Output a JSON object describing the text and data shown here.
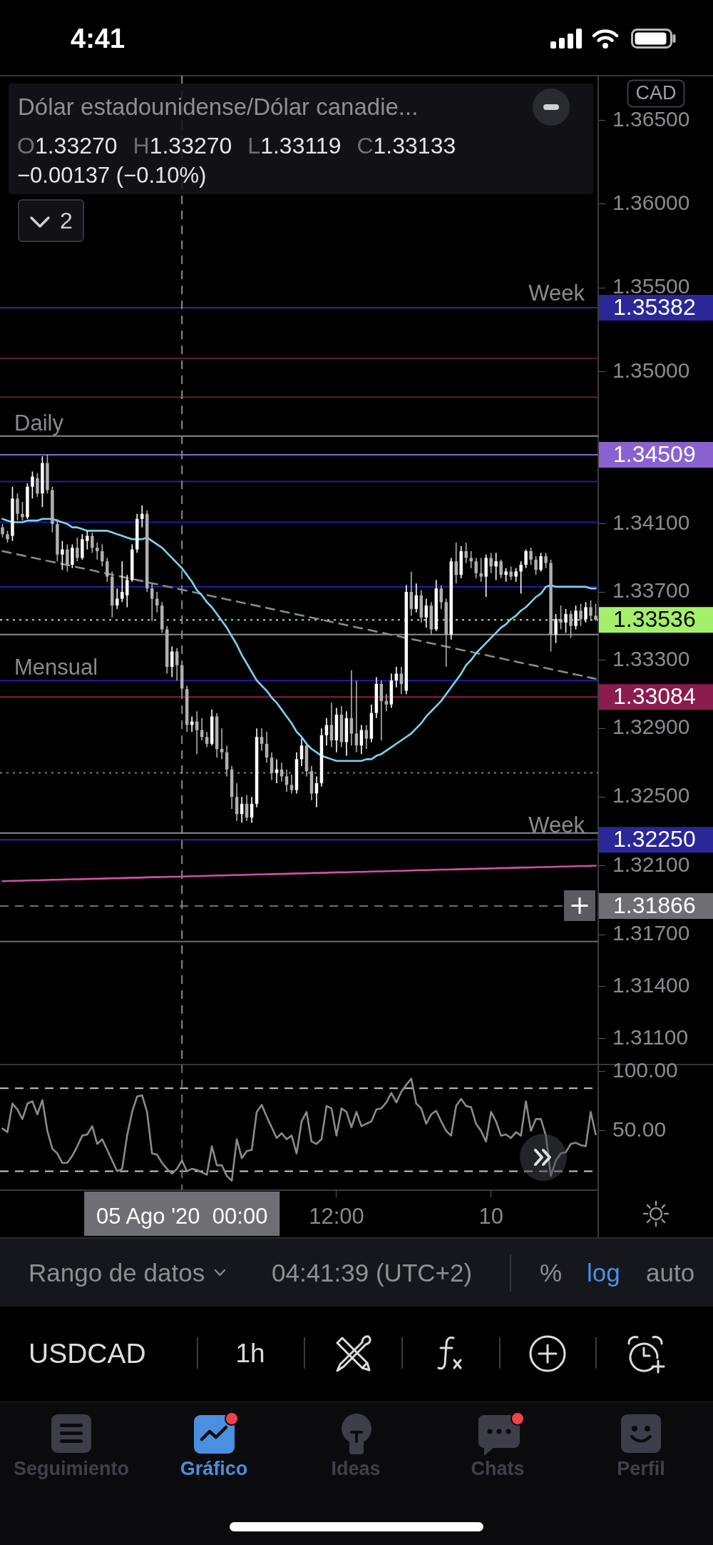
{
  "chart_data": [
    {
      "type": "candlestick",
      "title": "Dólar estadounidense/Dólar canadie...",
      "subtitle": "O1.33270 H1.33270 L1.33119 C1.33133",
      "log": true,
      "tick_labels": "y",
      "ylim": [
        1.3095,
        1.3677
      ],
      "yticks": [
        {
          "value": 1.365,
          "label": "1.36500"
        },
        {
          "value": 1.36,
          "label": "1.36000"
        },
        {
          "value": 1.355,
          "label": "1.35500"
        },
        {
          "value": 1.35,
          "label": "1.35000"
        },
        {
          "value": 1.341,
          "label": "1.34100"
        },
        {
          "value": 1.337,
          "label": "1.33700"
        },
        {
          "value": 1.333,
          "label": "1.33300"
        },
        {
          "value": 1.329,
          "label": "1.32900"
        },
        {
          "value": 1.325,
          "label": "1.32500"
        },
        {
          "value": 1.321,
          "label": "1.32100"
        },
        {
          "value": 1.317,
          "label": "1.31700"
        },
        {
          "value": 1.314,
          "label": "1.31400"
        },
        {
          "value": 1.311,
          "label": "1.31100"
        }
      ],
      "categories": [
        null,
        null,
        null,
        null,
        null,
        null,
        null,
        null,
        null,
        null,
        null,
        null,
        null,
        null,
        null,
        null,
        null,
        null,
        null,
        null,
        null,
        null,
        null,
        null,
        null,
        null,
        null,
        null,
        null,
        null,
        null,
        null,
        null,
        null,
        null,
        null,
        "05 Ago '20  00:00",
        null,
        null,
        null,
        null,
        null,
        null,
        null,
        null,
        null,
        null,
        null,
        null,
        null,
        null,
        null,
        null,
        null,
        null,
        null,
        null,
        null,
        null,
        null,
        null,
        null,
        null,
        null,
        null,
        null,
        null,
        "12:00",
        null,
        null,
        null,
        null,
        null,
        null,
        null,
        null,
        null,
        null,
        null,
        null,
        null,
        null,
        null,
        null,
        null,
        null,
        null,
        null,
        null,
        null,
        null,
        null,
        null,
        null,
        null,
        null,
        null,
        null,
        "10",
        null,
        null,
        null,
        null,
        null,
        null,
        null,
        null,
        null,
        null,
        null,
        null,
        null,
        null,
        null,
        null,
        null,
        null,
        null,
        null,
        null
      ],
      "ohlc": [
        [
          1.3408,
          1.341,
          1.3402,
          1.3404
        ],
        [
          1.3404,
          1.3406,
          1.3399,
          1.3401
        ],
        [
          1.3403,
          1.3432,
          1.34,
          1.3425
        ],
        [
          1.3425,
          1.3428,
          1.3412,
          1.3416
        ],
        [
          1.3416,
          1.3423,
          1.3412,
          1.3414
        ],
        [
          1.3414,
          1.3434,
          1.3413,
          1.3432
        ],
        [
          1.3432,
          1.3441,
          1.3425,
          1.3438
        ],
        [
          1.3437,
          1.344,
          1.3426,
          1.3428
        ],
        [
          1.3428,
          1.345,
          1.342,
          1.3446
        ],
        [
          1.3446,
          1.3451,
          1.3428,
          1.343
        ],
        [
          1.343,
          1.3432,
          1.3405,
          1.341
        ],
        [
          1.341,
          1.3413,
          1.3388,
          1.3392
        ],
        [
          1.3392,
          1.34,
          1.3383,
          1.3395
        ],
        [
          1.3395,
          1.3398,
          1.3382,
          1.3386
        ],
        [
          1.3386,
          1.3398,
          1.3384,
          1.3396
        ],
        [
          1.3396,
          1.3402,
          1.3388,
          1.339
        ],
        [
          1.339,
          1.3404,
          1.3389,
          1.3401
        ],
        [
          1.34,
          1.3406,
          1.3395,
          1.3403
        ],
        [
          1.3403,
          1.3405,
          1.3393,
          1.3396
        ],
        [
          1.3396,
          1.3399,
          1.3389,
          1.3394
        ],
        [
          1.3394,
          1.3398,
          1.3385,
          1.3388
        ],
        [
          1.3388,
          1.339,
          1.3376,
          1.3379
        ],
        [
          1.3379,
          1.3382,
          1.3355,
          1.3362
        ],
        [
          1.3362,
          1.3372,
          1.336,
          1.3366
        ],
        [
          1.3366,
          1.3388,
          1.3364,
          1.337
        ],
        [
          1.3368,
          1.338,
          1.3361,
          1.3377
        ],
        [
          1.3377,
          1.3398,
          1.3376,
          1.3395
        ],
        [
          1.3395,
          1.3416,
          1.3393,
          1.3413
        ],
        [
          1.3413,
          1.3421,
          1.3408,
          1.3416
        ],
        [
          1.3416,
          1.3418,
          1.337,
          1.3372
        ],
        [
          1.3372,
          1.3375,
          1.3353,
          1.3366
        ],
        [
          1.3366,
          1.337,
          1.3358,
          1.3362
        ],
        [
          1.3362,
          1.3364,
          1.3346,
          1.3348
        ],
        [
          1.3348,
          1.335,
          1.3322,
          1.3326
        ],
        [
          1.3326,
          1.3338,
          1.332,
          1.3335
        ],
        [
          1.3335,
          1.3337,
          1.3318,
          1.3327
        ],
        [
          1.3327,
          1.3327,
          1.33119,
          1.33133
        ],
        [
          1.3313,
          1.3315,
          1.3288,
          1.3292
        ],
        [
          1.3292,
          1.3297,
          1.3288,
          1.3294
        ],
        [
          1.3294,
          1.33,
          1.3275,
          1.3289
        ],
        [
          1.3289,
          1.3296,
          1.3283,
          1.3285
        ],
        [
          1.3285,
          1.3288,
          1.3279,
          1.3281
        ],
        [
          1.3281,
          1.3301,
          1.328,
          1.3297
        ],
        [
          1.3297,
          1.3299,
          1.3273,
          1.3278
        ],
        [
          1.3278,
          1.329,
          1.3272,
          1.3276
        ],
        [
          1.3276,
          1.328,
          1.3262,
          1.3266
        ],
        [
          1.3266,
          1.3268,
          1.3243,
          1.325
        ],
        [
          1.325,
          1.3258,
          1.3236,
          1.324
        ],
        [
          1.324,
          1.325,
          1.3235,
          1.3246
        ],
        [
          1.3246,
          1.3251,
          1.3236,
          1.3238
        ],
        [
          1.3238,
          1.325,
          1.3235,
          1.3246
        ],
        [
          1.3246,
          1.329,
          1.3244,
          1.3285
        ],
        [
          1.3285,
          1.329,
          1.3277,
          1.3281
        ],
        [
          1.3281,
          1.3288,
          1.327,
          1.3273
        ],
        [
          1.3273,
          1.3276,
          1.326,
          1.3264
        ],
        [
          1.3264,
          1.3272,
          1.3258,
          1.3266
        ],
        [
          1.3266,
          1.327,
          1.3259,
          1.3262
        ],
        [
          1.3262,
          1.3266,
          1.3253,
          1.3257
        ],
        [
          1.3257,
          1.3263,
          1.3252,
          1.3254
        ],
        [
          1.3254,
          1.3276,
          1.3252,
          1.3272
        ],
        [
          1.3272,
          1.3284,
          1.3268,
          1.328
        ],
        [
          1.328,
          1.3282,
          1.3262,
          1.3265
        ],
        [
          1.3265,
          1.3268,
          1.3248,
          1.3252
        ],
        [
          1.3252,
          1.3262,
          1.3244,
          1.3258
        ],
        [
          1.3258,
          1.329,
          1.3256,
          1.3286
        ],
        [
          1.3286,
          1.3296,
          1.328,
          1.3292
        ],
        [
          1.3292,
          1.3305,
          1.3279,
          1.3283
        ],
        [
          1.3283,
          1.3302,
          1.3276,
          1.3298
        ],
        [
          1.3298,
          1.3303,
          1.3279,
          1.3282
        ],
        [
          1.3282,
          1.33,
          1.3274,
          1.3296
        ],
        [
          1.3296,
          1.3324,
          1.328,
          1.3287
        ],
        [
          1.3287,
          1.3318,
          1.3276,
          1.328
        ],
        [
          1.328,
          1.3292,
          1.3275,
          1.3289
        ],
        [
          1.3289,
          1.3292,
          1.3278,
          1.3284
        ],
        [
          1.3284,
          1.3304,
          1.3282,
          1.3299
        ],
        [
          1.3299,
          1.332,
          1.3296,
          1.3316
        ],
        [
          1.3316,
          1.3318,
          1.3283,
          1.3306
        ],
        [
          1.3306,
          1.331,
          1.33,
          1.3304
        ],
        [
          1.3304,
          1.3322,
          1.3302,
          1.3318
        ],
        [
          1.3318,
          1.3326,
          1.3314,
          1.3322
        ],
        [
          1.3322,
          1.3326,
          1.331,
          1.3316
        ],
        [
          1.3312,
          1.3374,
          1.331,
          1.337
        ],
        [
          1.337,
          1.3382,
          1.3356,
          1.336
        ],
        [
          1.336,
          1.3375,
          1.3358,
          1.3368
        ],
        [
          1.3368,
          1.3371,
          1.3352,
          1.3355
        ],
        [
          1.3355,
          1.3366,
          1.3349,
          1.3362
        ],
        [
          1.3362,
          1.3364,
          1.3345,
          1.3348
        ],
        [
          1.3348,
          1.3377,
          1.3347,
          1.3372
        ],
        [
          1.3372,
          1.3374,
          1.336,
          1.3364
        ],
        [
          1.3364,
          1.3366,
          1.3326,
          1.3345
        ],
        [
          1.3345,
          1.339,
          1.3342,
          1.3388
        ],
        [
          1.3388,
          1.3399,
          1.3375,
          1.338
        ],
        [
          1.338,
          1.3397,
          1.3378,
          1.3394
        ],
        [
          1.3394,
          1.3399,
          1.3387,
          1.339
        ],
        [
          1.339,
          1.3394,
          1.3384,
          1.3388
        ],
        [
          1.3388,
          1.339,
          1.3378,
          1.3381
        ],
        [
          1.3381,
          1.339,
          1.3376,
          1.3379
        ],
        [
          1.3379,
          1.3392,
          1.3367,
          1.339
        ],
        [
          1.339,
          1.3393,
          1.3381,
          1.3385
        ],
        [
          1.3385,
          1.3393,
          1.3377,
          1.3388
        ],
        [
          1.3388,
          1.3389,
          1.3378,
          1.338
        ],
        [
          1.338,
          1.3384,
          1.3376,
          1.3382
        ],
        [
          1.3382,
          1.3385,
          1.3377,
          1.3379
        ],
        [
          1.3379,
          1.3384,
          1.3376,
          1.3382
        ],
        [
          1.3382,
          1.3388,
          1.3369,
          1.3386
        ],
        [
          1.3386,
          1.3395,
          1.3384,
          1.3394
        ],
        [
          1.3394,
          1.3396,
          1.3386,
          1.3389
        ],
        [
          1.3389,
          1.3391,
          1.338,
          1.3383
        ],
        [
          1.3383,
          1.3393,
          1.3382,
          1.3391
        ],
        [
          1.3391,
          1.3393,
          1.3384,
          1.3387
        ],
        [
          1.3387,
          1.3389,
          1.3335,
          1.3345
        ],
        [
          1.3345,
          1.3357,
          1.334,
          1.3354
        ],
        [
          1.3354,
          1.3362,
          1.3348,
          1.3352
        ],
        [
          1.3352,
          1.336,
          1.3346,
          1.3357
        ],
        [
          1.3357,
          1.3359,
          1.3343,
          1.335
        ],
        [
          1.335,
          1.3362,
          1.3348,
          1.3359
        ],
        [
          1.3359,
          1.3363,
          1.335,
          1.3354
        ],
        [
          1.3354,
          1.3364,
          1.3352,
          1.3361
        ],
        [
          1.3361,
          1.3365,
          1.3353,
          1.3356
        ],
        [
          1.3356,
          1.3363,
          1.3353,
          1.33536
        ]
      ],
      "colors": [
        "#b0b0b0",
        "#b0b0b0",
        "#ffffff",
        "#b0b0b0",
        "#b0b0b0",
        "#ffffff",
        "#ffffff",
        "#b0b0b0",
        "#ffffff",
        "#b0b0b0",
        "#b0b0b0",
        "#b0b0b0",
        "#ffffff",
        "#b0b0b0",
        "#ffffff",
        "#b0b0b0",
        "#ffffff",
        "#ffffff",
        "#b0b0b0",
        "#b0b0b0",
        "#b0b0b0",
        "#b0b0b0",
        "#b0b0b0",
        "#ffffff",
        "#ffffff",
        "#ffffff",
        "#ffffff",
        "#ffffff",
        "#ffffff",
        "#b0b0b0",
        "#b0b0b0",
        "#b0b0b0",
        "#b0b0b0",
        "#b0b0b0",
        "#ffffff",
        "#b0b0b0",
        "#b0b0b0",
        "#b0b0b0",
        "#ffffff",
        "#b0b0b0",
        "#b0b0b0",
        "#b0b0b0",
        "#ffffff",
        "#b0b0b0",
        "#b0b0b0",
        "#b0b0b0",
        "#b0b0b0",
        "#b0b0b0",
        "#ffffff",
        "#b0b0b0",
        "#ffffff",
        "#ffffff",
        "#b0b0b0",
        "#b0b0b0",
        "#b0b0b0",
        "#ffffff",
        "#b0b0b0",
        "#b0b0b0",
        "#b0b0b0",
        "#ffffff",
        "#ffffff",
        "#b0b0b0",
        "#b0b0b0",
        "#ffffff",
        "#ffffff",
        "#ffffff",
        "#b0b0b0",
        "#ffffff",
        "#b0b0b0",
        "#ffffff",
        "#b0b0b0",
        "#b0b0b0",
        "#ffffff",
        "#b0b0b0",
        "#ffffff",
        "#ffffff",
        "#b0b0b0",
        "#b0b0b0",
        "#ffffff",
        "#ffffff",
        "#b0b0b0",
        "#ffffff",
        "#b0b0b0",
        "#ffffff",
        "#b0b0b0",
        "#ffffff",
        "#b0b0b0",
        "#ffffff",
        "#b0b0b0",
        "#b0b0b0",
        "#ffffff",
        "#b0b0b0",
        "#ffffff",
        "#b0b0b0",
        "#b0b0b0",
        "#b0b0b0",
        "#b0b0b0",
        "#ffffff",
        "#b0b0b0",
        "#ffffff",
        "#b0b0b0",
        "#ffffff",
        "#b0b0b0",
        "#ffffff",
        "#ffffff",
        "#ffffff",
        "#b0b0b0",
        "#b0b0b0",
        "#ffffff",
        "#b0b0b0",
        "#b0b0b0",
        "#ffffff",
        "#b0b0b0",
        "#ffffff",
        "#b0b0b0",
        "#ffffff",
        "#b0b0b0",
        "#ffffff",
        "#b0b0b0",
        "#b0b0b0"
      ],
      "series": [
        {
          "type": "line",
          "color": "#7fd2ee",
          "values": [
            1.3413,
            1.3412,
            1.3411,
            1.3411,
            1.3411,
            1.3412,
            1.3412,
            1.3412,
            1.3413,
            1.3413,
            1.3413,
            1.3412,
            1.3411,
            1.341,
            1.3408,
            1.3408,
            1.3407,
            1.3406,
            1.3406,
            1.3406,
            1.3406,
            1.3406,
            1.3405,
            1.3404,
            1.3403,
            1.3402,
            1.3401,
            1.3401,
            1.3401,
            1.3402,
            1.34,
            1.3398,
            1.3396,
            1.3393,
            1.339,
            1.3387,
            1.3384,
            1.338,
            1.3376,
            1.3371,
            1.3368,
            1.3364,
            1.3361,
            1.3357,
            1.3353,
            1.3349,
            1.3344,
            1.3339,
            1.3333,
            1.3328,
            1.3323,
            1.3318,
            1.3315,
            1.3312,
            1.3308,
            1.3305,
            1.3301,
            1.3297,
            1.3293,
            1.3288,
            1.3285,
            1.3281,
            1.3278,
            1.3276,
            1.3274,
            1.3273,
            1.3272,
            1.3271,
            1.3271,
            1.3271,
            1.3271,
            1.3271,
            1.3271,
            1.3272,
            1.3272,
            1.3274,
            1.3275,
            1.3277,
            1.3279,
            1.3281,
            1.3283,
            1.3285,
            1.3287,
            1.329,
            1.3293,
            1.3297,
            1.33,
            1.3303,
            1.3306,
            1.331,
            1.3314,
            1.3318,
            1.3322,
            1.3327,
            1.333,
            1.3334,
            1.3337,
            1.334,
            1.3343,
            1.3346,
            1.3349,
            1.3351,
            1.3354,
            1.3356,
            1.3359,
            1.3361,
            1.3364,
            1.3367,
            1.3369,
            1.3373,
            1.3374,
            1.3373,
            1.3373,
            1.3373,
            1.3373,
            1.3373,
            1.3373,
            1.3373,
            1.3372,
            1.3372
          ]
        },
        {
          "type": "line",
          "color": "#8a8a8a",
          "line_style": "dashed",
          "values": [
            1.3394,
            1.33934,
            1.33927,
            1.33921,
            1.33915,
            1.33908,
            1.33902,
            1.33896,
            1.3389,
            1.33883,
            1.33877,
            1.33871,
            1.33864,
            1.33858,
            1.33852,
            1.33845,
            1.33839,
            1.33833,
            1.33827,
            1.3382,
            1.33814,
            1.33808,
            1.33801,
            1.33795,
            1.33789,
            1.33782,
            1.33776,
            1.3377,
            1.33764,
            1.33757,
            1.33751,
            1.33745,
            1.33738,
            1.33732,
            1.33726,
            1.33719,
            1.33713,
            1.33707,
            1.337,
            1.33694,
            1.33688,
            1.33682,
            1.33675,
            1.33669,
            1.33663,
            1.33656,
            1.3365,
            1.33644,
            1.33637,
            1.33631,
            1.33625,
            1.33619,
            1.33612,
            1.33606,
            1.336,
            1.33593,
            1.33587,
            1.33581,
            1.33574,
            1.33568,
            1.33562,
            1.33556,
            1.33549,
            1.33543,
            1.33537,
            1.3353,
            1.33524,
            1.33518,
            1.33511,
            1.33505,
            1.33499,
            1.33492,
            1.33486,
            1.3348,
            1.33474,
            1.33467,
            1.33461,
            1.33455,
            1.33448,
            1.33442,
            1.33436,
            1.33429,
            1.33423,
            1.33417,
            1.33411,
            1.33404,
            1.33398,
            1.33392,
            1.33385,
            1.33379,
            1.33373,
            1.33366,
            1.3336,
            1.33354,
            1.33348,
            1.33341,
            1.33335,
            1.33329,
            1.33322,
            1.33316,
            1.3331,
            1.33303,
            1.33297,
            1.33291,
            1.33284,
            1.33278,
            1.33272,
            1.33266,
            1.33259,
            1.33253,
            1.33247,
            1.3324,
            1.33234,
            1.33228,
            1.33221,
            1.33215,
            1.33209,
            1.33203,
            1.33196,
            1.3319
          ]
        },
        {
          "type": "line",
          "color": "#d24fa6",
          "values": [
            1.3201,
            1.32011,
            1.32012,
            1.32012,
            1.32013,
            1.32014,
            1.32015,
            1.32015,
            1.32016,
            1.32017,
            1.32018,
            1.32018,
            1.32019,
            1.3202,
            1.32021,
            1.32021,
            1.32022,
            1.32023,
            1.32024,
            1.32024,
            1.32025,
            1.32026,
            1.32027,
            1.32027,
            1.32028,
            1.32029,
            1.3203,
            1.3203,
            1.32031,
            1.32032,
            1.32033,
            1.32033,
            1.32034,
            1.32035,
            1.32036,
            1.32036,
            1.32037,
            1.32038,
            1.32039,
            1.32039,
            1.3204,
            1.32041,
            1.32042,
            1.32043,
            1.32043,
            1.32044,
            1.32045,
            1.32046,
            1.32046,
            1.32047,
            1.32048,
            1.32049,
            1.32049,
            1.3205,
            1.32051,
            1.32052,
            1.32052,
            1.32053,
            1.32054,
            1.32055,
            1.32055,
            1.32056,
            1.32057,
            1.32058,
            1.32058,
            1.32059,
            1.3206,
            1.32061,
            1.32061,
            1.32062,
            1.32063,
            1.32064,
            1.32064,
            1.32065,
            1.32066,
            1.32067,
            1.32067,
            1.32068,
            1.32069,
            1.3207,
            1.3207,
            1.32071,
            1.32072,
            1.32073,
            1.32074,
            1.32074,
            1.32075,
            1.32076,
            1.32077,
            1.32077,
            1.32078,
            1.32079,
            1.3208,
            1.3208,
            1.32081,
            1.32082,
            1.32083,
            1.32083,
            1.32084,
            1.32085,
            1.32086,
            1.32086,
            1.32087,
            1.32088,
            1.32089,
            1.32089,
            1.3209,
            1.32091,
            1.32092,
            1.32092,
            1.32093,
            1.32094,
            1.32095,
            1.32095,
            1.32096,
            1.32097,
            1.32098,
            1.32098,
            1.32099,
            1.321
          ]
        }
      ],
      "ref_lines": [
        {
          "axis": "y",
          "value": 1.35382,
          "label": "1.35382",
          "color": "#2b2799"
        },
        {
          "axis": "y",
          "value": 1.3508,
          "color": "#5e2024"
        },
        {
          "axis": "y",
          "value": 1.3485,
          "color": "#5e2024"
        },
        {
          "axis": "y",
          "value": 1.3462,
          "color": "#8a8a8a"
        },
        {
          "axis": "y",
          "value": 1.34509,
          "label": "1.34509",
          "color": "#8a62d0"
        },
        {
          "axis": "y",
          "value": 1.3435,
          "color": "#1e1ea6"
        },
        {
          "axis": "y",
          "value": 1.3411,
          "color": "#1e1ea6"
        },
        {
          "axis": "y",
          "value": 1.3373,
          "color": "#1e1ea6"
        },
        {
          "axis": "y",
          "value": 1.33536,
          "label": "1.33536",
          "color": "#a5f06b",
          "line_style": "dotted"
        },
        {
          "axis": "y",
          "value": 1.3345,
          "color": "#8a8a8a"
        },
        {
          "axis": "y",
          "value": 1.3318,
          "color": "#1e1ea6"
        },
        {
          "axis": "y",
          "value": 1.33084,
          "label": "1.33084",
          "color": "#8b1d4c"
        },
        {
          "axis": "y",
          "value": 1.3264,
          "color": "#6b8f5c",
          "line_style": "dotted"
        },
        {
          "axis": "y",
          "value": 1.3229,
          "color": "#8a8a8a"
        },
        {
          "axis": "y",
          "value": 1.3225,
          "label": "1.32250",
          "color": "#2b2799"
        },
        {
          "axis": "y",
          "value": 1.31866,
          "label": "1.31866",
          "color": "#6e6e74",
          "line_style": "dashed"
        },
        {
          "axis": "y",
          "value": 1.3166,
          "color": "#4f7d4f"
        },
        {
          "axis": "x",
          "value": "05 Ago '20  00:00",
          "color": "#8a8a8a",
          "line_style": "dashed"
        }
      ],
      "annotations": [
        {
          "text": "Week",
          "y": 1.35382
        },
        {
          "text": "Daily",
          "y": 1.3462
        },
        {
          "text": "Mensual",
          "y": 1.3318
        },
        {
          "text": "Week",
          "y": 1.3225
        },
        "4:41",
        "−0.00137 (−0.10%)",
        "2",
        "CAD"
      ]
    },
    {
      "type": "line",
      "color": "#8a8a8a",
      "ylim": [
        0,
        106
      ],
      "yticks": [
        {
          "value": 100,
          "label": "100.00"
        },
        {
          "value": 50,
          "label": "50.00"
        }
      ],
      "categories": [
        null,
        null,
        null,
        null,
        null,
        null,
        null,
        null,
        null,
        null,
        null,
        null,
        null,
        null,
        null,
        null,
        null,
        null,
        null,
        null,
        null,
        null,
        null,
        null,
        null,
        null,
        null,
        null,
        null,
        null,
        null,
        null,
        null,
        null,
        null,
        null,
        "05 Ago '20  00:00",
        null,
        null,
        null,
        null,
        null,
        null,
        null,
        null,
        null,
        null,
        null,
        null,
        null,
        null,
        null,
        null,
        null,
        null,
        null,
        null,
        null,
        null,
        null,
        null,
        null,
        null,
        null,
        null,
        null,
        null,
        "12:00",
        null,
        null,
        null,
        null,
        null,
        null,
        null,
        null,
        null,
        null,
        null,
        null,
        null,
        null,
        null,
        null,
        null,
        null,
        null,
        null,
        null,
        null,
        null,
        null,
        null,
        null,
        null,
        null,
        null,
        null,
        "10",
        null,
        null,
        null,
        null,
        null,
        null,
        null,
        null,
        null,
        null,
        null,
        null,
        null,
        null,
        null,
        null,
        null,
        null,
        null,
        null,
        null
      ],
      "values": [
        52,
        49,
        73,
        68,
        60,
        73,
        75,
        64,
        76,
        50,
        35,
        31,
        23,
        23,
        29,
        37,
        46,
        47,
        54,
        39,
        43,
        34,
        25,
        16,
        18,
        46,
        66,
        79,
        80,
        66,
        31,
        30,
        23,
        18,
        14,
        18,
        25,
        16,
        18,
        17,
        15,
        13,
        37,
        21,
        21,
        12,
        8,
        43,
        27,
        33,
        34,
        66,
        72,
        62,
        53,
        44,
        48,
        43,
        46,
        31,
        58,
        66,
        41,
        39,
        43,
        71,
        69,
        46,
        69,
        66,
        53,
        66,
        54,
        56,
        58,
        68,
        69,
        74,
        82,
        74,
        83,
        89,
        94,
        73,
        69,
        56,
        64,
        67,
        58,
        50,
        46,
        71,
        77,
        71,
        70,
        56,
        50,
        41,
        66,
        58,
        46,
        47,
        44,
        49,
        46,
        75,
        50,
        60,
        60,
        46,
        12,
        25,
        31,
        32,
        39,
        40,
        38,
        37,
        66,
        47
      ],
      "ref_lines": [
        {
          "axis": "y",
          "value": 86,
          "color": "#c8c8c8",
          "line_style": "dashed"
        },
        {
          "axis": "y",
          "value": 16,
          "color": "#c8c8c8",
          "line_style": "dashed"
        },
        {
          "axis": "x",
          "value": "05 Ago '20  00:00",
          "color": "#6e6e74",
          "line_style": "dashed"
        }
      ],
      "annotations": [
        "Rango de datos",
        "04:41:39 (UTC+2)",
        "%",
        "log",
        "auto",
        "USDCAD",
        "1h",
        "Seguimiento",
        "Gráfico",
        "Ideas",
        "Chats",
        "Perfil"
      ]
    }
  ]
}
